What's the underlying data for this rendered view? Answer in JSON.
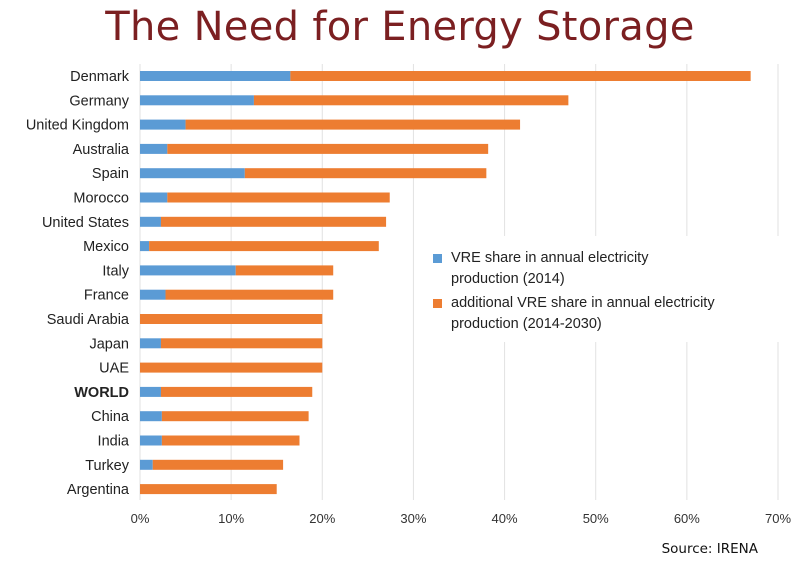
{
  "title": "The Need for Energy Storage",
  "source": "Source: IRENA",
  "colors": {
    "vre": "#5b9bd5",
    "additional": "#ed7d31",
    "title": "#7b1f21"
  },
  "chart_data": {
    "type": "bar",
    "orientation": "horizontal",
    "stacked": true,
    "categories": [
      "Denmark",
      "Germany",
      "United Kingdom",
      "Australia",
      "Spain",
      "Morocco",
      "United States",
      "Mexico",
      "Italy",
      "France",
      "Saudi Arabia",
      "Japan",
      "UAE",
      "WORLD",
      "China",
      "India",
      "Turkey",
      "Argentina"
    ],
    "bold_categories": [
      "WORLD"
    ],
    "series": [
      {
        "name": "VRE share in annual electricity production (2014)",
        "color": "#5b9bd5",
        "values": [
          16.5,
          12.5,
          5.0,
          3.0,
          11.5,
          3.0,
          2.3,
          1.0,
          10.5,
          2.8,
          0,
          2.3,
          0,
          2.3,
          2.4,
          2.4,
          1.4,
          0
        ]
      },
      {
        "name": "additional VRE share in annual electricity production (2014-2030)",
        "color": "#ed7d31",
        "values": [
          50.5,
          34.5,
          36.7,
          35.2,
          26.5,
          24.4,
          24.7,
          25.2,
          10.7,
          18.4,
          20.0,
          17.7,
          20.0,
          16.6,
          16.1,
          15.1,
          14.3,
          15.0
        ]
      }
    ],
    "x_ticks": [
      "0%",
      "10%",
      "20%",
      "30%",
      "40%",
      "50%",
      "60%",
      "70%"
    ],
    "xlim": [
      0,
      70
    ],
    "x_unit": "%",
    "grid": "vertical",
    "legend_position": "center-right"
  }
}
